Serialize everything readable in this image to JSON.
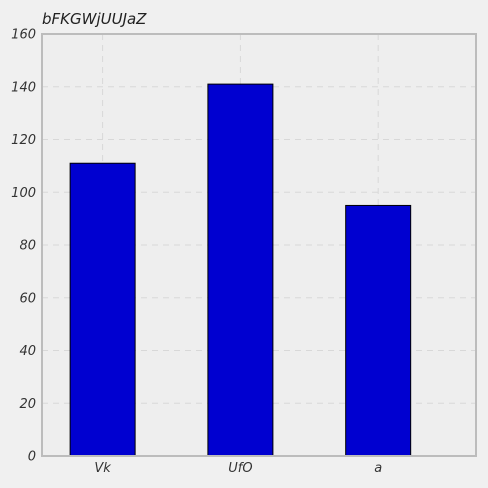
{
  "chart_data": {
    "type": "bar",
    "title": "bFKGWjUUJaZ",
    "categories": [
      "Vk",
      "UfO",
      "a"
    ],
    "values": [
      111,
      141,
      95
    ],
    "ylim": [
      0,
      160
    ],
    "yticks": [
      0,
      20,
      40,
      60,
      80,
      100,
      120,
      140,
      160
    ],
    "xlabel": "",
    "ylabel": "",
    "grid": true,
    "colors": {
      "bar": "#0000d0",
      "bar_edge": "#000000",
      "plot_background": "#eeeeee",
      "figure_background": "#f0f0f0",
      "grid": "#d8d8d8",
      "axes_border": "#bcbcbc"
    }
  }
}
